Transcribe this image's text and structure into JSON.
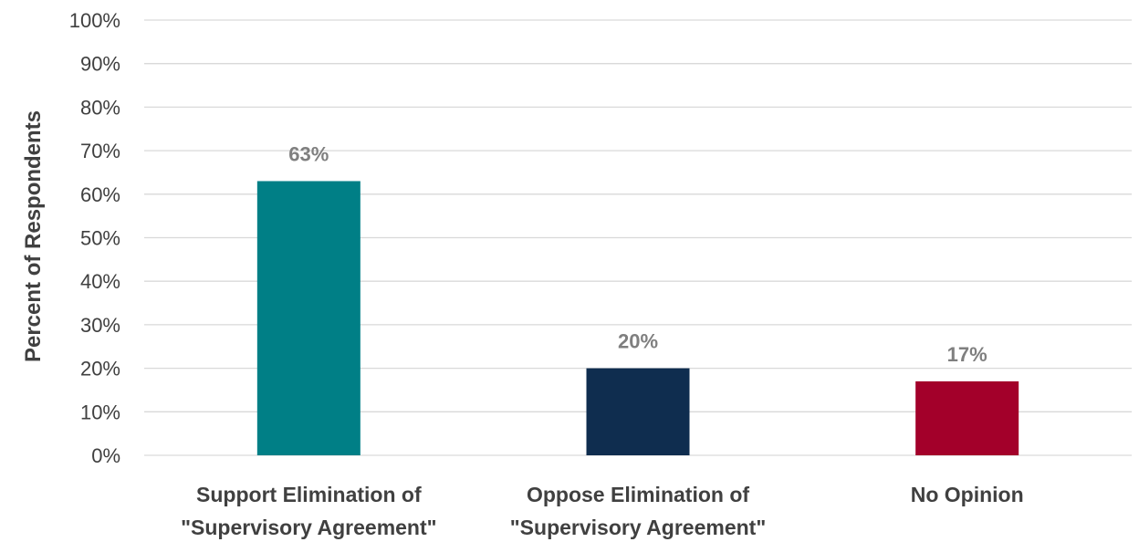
{
  "chart_data": {
    "type": "bar",
    "title": "",
    "xlabel": "",
    "ylabel": "Percent of Respondents",
    "ylim": [
      0,
      100
    ],
    "yticks": [
      0,
      10,
      20,
      30,
      40,
      50,
      60,
      70,
      80,
      90,
      100
    ],
    "ytick_suffix": "%",
    "grid": true,
    "legend": "none",
    "categories": [
      [
        "Support Elimination of",
        "\"Supervisory Agreement\""
      ],
      [
        "Oppose Elimination of",
        "\"Supervisory Agreement\""
      ],
      [
        "No Opinion"
      ]
    ],
    "values": [
      63,
      20,
      17
    ],
    "data_labels": [
      "63%",
      "20%",
      "17%"
    ],
    "colors": [
      "#007f86",
      "#0f2d4f",
      "#a3002a"
    ]
  }
}
